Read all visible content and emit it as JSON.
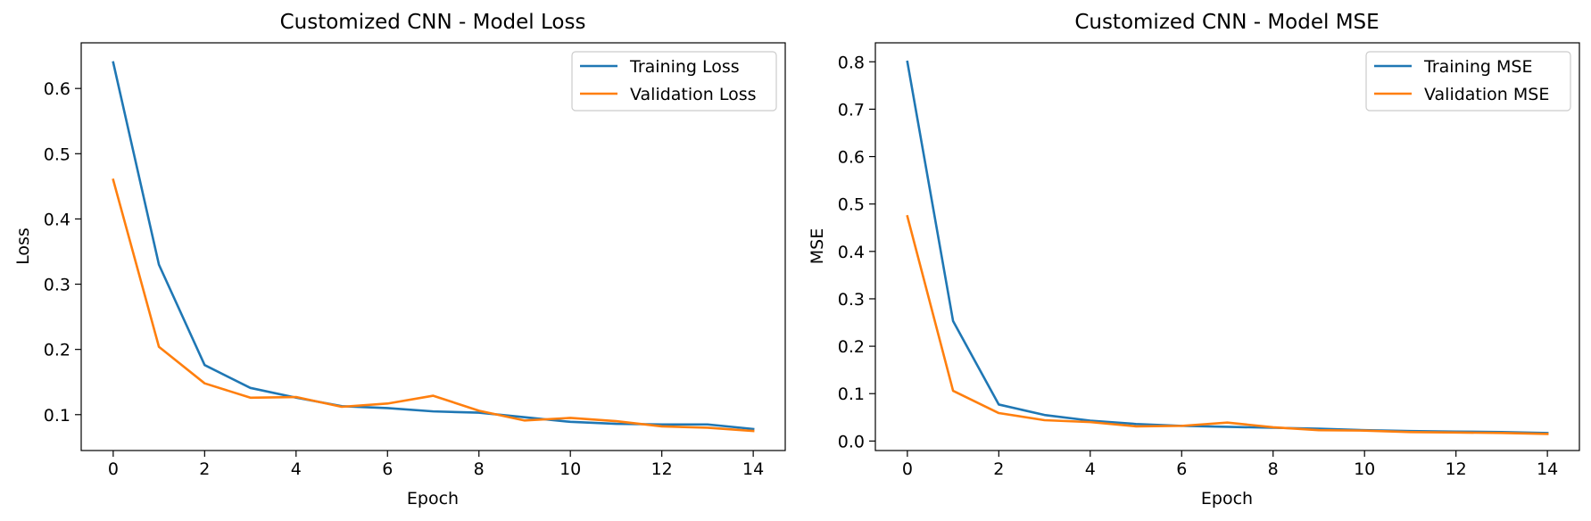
{
  "chart_data": [
    {
      "type": "line",
      "title": "Customized CNN - Model Loss",
      "xlabel": "Epoch",
      "ylabel": "Loss",
      "xlim": [
        -0.7,
        14.7
      ],
      "ylim": [
        0.045,
        0.67
      ],
      "xticks": [
        0,
        2,
        4,
        6,
        8,
        10,
        12,
        14
      ],
      "yticks": [
        0.1,
        0.2,
        0.3,
        0.4,
        0.5,
        0.6
      ],
      "grid": false,
      "legend_position": "top-right",
      "x": [
        0,
        1,
        2,
        3,
        4,
        5,
        6,
        7,
        8,
        9,
        10,
        11,
        12,
        13,
        14
      ],
      "series": [
        {
          "name": "Training Loss",
          "color": "#1f77b4",
          "values": [
            0.64,
            0.33,
            0.176,
            0.141,
            0.126,
            0.113,
            0.11,
            0.105,
            0.103,
            0.096,
            0.089,
            0.086,
            0.085,
            0.085,
            0.078
          ]
        },
        {
          "name": "Validation Loss",
          "color": "#ff7f0e",
          "values": [
            0.46,
            0.204,
            0.148,
            0.126,
            0.127,
            0.112,
            0.117,
            0.129,
            0.106,
            0.091,
            0.095,
            0.09,
            0.082,
            0.08,
            0.075
          ]
        }
      ]
    },
    {
      "type": "line",
      "title": "Customized CNN - Model MSE",
      "xlabel": "Epoch",
      "ylabel": "MSE",
      "xlim": [
        -0.7,
        14.7
      ],
      "ylim": [
        -0.02,
        0.84
      ],
      "xticks": [
        0,
        2,
        4,
        6,
        8,
        10,
        12,
        14
      ],
      "yticks": [
        0.0,
        0.1,
        0.2,
        0.3,
        0.4,
        0.5,
        0.6,
        0.7,
        0.8
      ],
      "grid": false,
      "legend_position": "top-right",
      "x": [
        0,
        1,
        2,
        3,
        4,
        5,
        6,
        7,
        8,
        9,
        10,
        11,
        12,
        13,
        14
      ],
      "series": [
        {
          "name": "Training MSE",
          "color": "#1f77b4",
          "values": [
            0.8,
            0.253,
            0.077,
            0.055,
            0.043,
            0.036,
            0.032,
            0.03,
            0.028,
            0.026,
            0.023,
            0.021,
            0.02,
            0.019,
            0.017
          ]
        },
        {
          "name": "Validation MSE",
          "color": "#ff7f0e",
          "values": [
            0.474,
            0.106,
            0.059,
            0.044,
            0.04,
            0.031,
            0.032,
            0.039,
            0.029,
            0.023,
            0.022,
            0.019,
            0.018,
            0.017,
            0.015
          ]
        }
      ]
    }
  ]
}
